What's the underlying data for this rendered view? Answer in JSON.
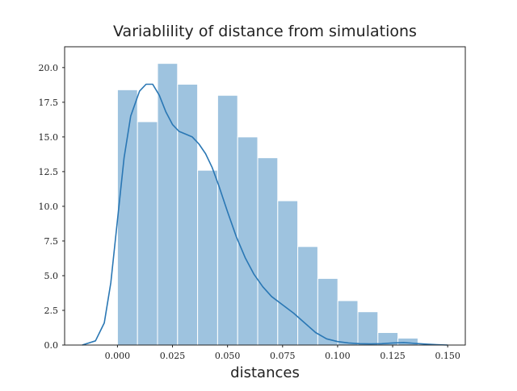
{
  "chart_data": {
    "type": "histogram",
    "title": "Variablility of distance from simulations",
    "xlabel": "distances",
    "ylabel": "",
    "xlim": [
      -0.024,
      0.158
    ],
    "ylim": [
      0,
      21.5
    ],
    "grid": false,
    "bar_color": "#9ec3df",
    "bar_edge_color": "#ffffff",
    "kde_color": "#2a77b4",
    "x_ticks": [
      "0.000",
      "0.025",
      "0.050",
      "0.075",
      "0.100",
      "0.125",
      "0.150"
    ],
    "y_ticks": [
      "0.0",
      "2.5",
      "5.0",
      "7.5",
      "10.0",
      "12.5",
      "15.0",
      "17.5",
      "20.0"
    ],
    "x_tick_values": [
      0,
      0.025,
      0.05,
      0.075,
      0.1,
      0.125,
      0.15
    ],
    "y_tick_values": [
      0,
      2.5,
      5,
      7.5,
      10,
      12.5,
      15,
      17.5,
      20
    ],
    "bins": {
      "start": 0.0,
      "width": 0.0091,
      "heights": [
        18.4,
        16.1,
        20.3,
        18.8,
        12.6,
        18.0,
        15.0,
        13.5,
        10.4,
        7.1,
        4.8,
        3.2,
        2.4,
        0.9,
        0.5
      ]
    },
    "kde": {
      "x": [
        -0.016,
        -0.01,
        -0.006,
        -0.003,
        0.0,
        0.003,
        0.006,
        0.01,
        0.013,
        0.016,
        0.019,
        0.022,
        0.025,
        0.028,
        0.031,
        0.034,
        0.037,
        0.04,
        0.043,
        0.046,
        0.05,
        0.054,
        0.058,
        0.062,
        0.066,
        0.07,
        0.075,
        0.08,
        0.085,
        0.09,
        0.095,
        0.1,
        0.105,
        0.11,
        0.115,
        0.12,
        0.125,
        0.13,
        0.135,
        0.14,
        0.145,
        0.15
      ],
      "y": [
        0.0,
        0.3,
        1.6,
        4.5,
        9.0,
        13.5,
        16.5,
        18.3,
        18.8,
        18.8,
        18.0,
        16.8,
        15.9,
        15.4,
        15.2,
        15.0,
        14.5,
        13.8,
        12.8,
        11.5,
        9.6,
        7.8,
        6.3,
        5.1,
        4.2,
        3.5,
        2.9,
        2.3,
        1.6,
        0.9,
        0.45,
        0.25,
        0.15,
        0.1,
        0.08,
        0.1,
        0.15,
        0.18,
        0.12,
        0.07,
        0.03,
        0.0
      ]
    }
  }
}
